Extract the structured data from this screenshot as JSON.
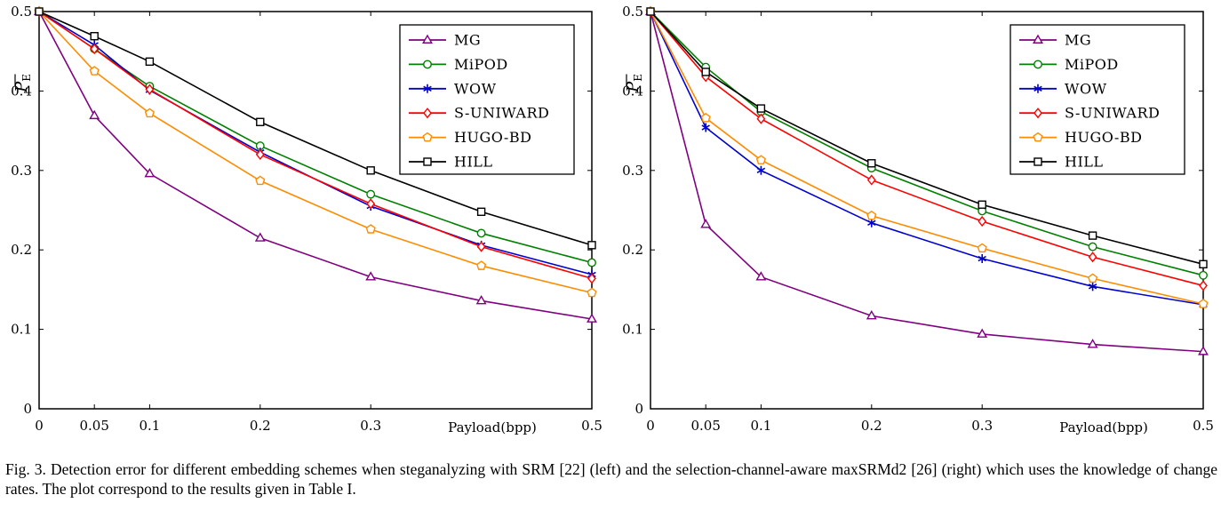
{
  "chart_data": [
    {
      "type": "line",
      "title": "",
      "xlabel": "Payload(bpp)",
      "ylabel": "P̅E",
      "x": [
        0,
        0.05,
        0.1,
        0.2,
        0.3,
        0.4,
        0.5
      ],
      "x_ticks": [
        0,
        0.05,
        0.1,
        0.2,
        0.3,
        0.5
      ],
      "y_ticks": [
        0,
        0.1,
        0.2,
        0.3,
        0.4,
        0.5
      ],
      "xlim": [
        0,
        0.5
      ],
      "ylim": [
        0,
        0.5
      ],
      "grid": false,
      "legend_position": "top-right",
      "series": [
        {
          "name": "MG",
          "values": [
            0.5,
            0.369,
            0.296,
            0.215,
            0.166,
            0.136,
            0.113
          ]
        },
        {
          "name": "MiPOD",
          "values": [
            0.5,
            0.453,
            0.406,
            0.331,
            0.27,
            0.221,
            0.184
          ]
        },
        {
          "name": "WOW",
          "values": [
            0.5,
            0.458,
            0.401,
            0.323,
            0.255,
            0.206,
            0.169
          ]
        },
        {
          "name": "S-UNIWARD",
          "values": [
            0.5,
            0.453,
            0.402,
            0.32,
            0.258,
            0.204,
            0.164
          ]
        },
        {
          "name": "HUGO-BD",
          "values": [
            0.5,
            0.425,
            0.372,
            0.287,
            0.226,
            0.18,
            0.146
          ]
        },
        {
          "name": "HILL",
          "values": [
            0.5,
            0.469,
            0.437,
            0.361,
            0.3,
            0.248,
            0.206
          ]
        }
      ]
    },
    {
      "type": "line",
      "title": "",
      "xlabel": "Payload(bpp)",
      "ylabel": "P̅E",
      "x": [
        0,
        0.05,
        0.1,
        0.2,
        0.3,
        0.4,
        0.5
      ],
      "x_ticks": [
        0,
        0.05,
        0.1,
        0.2,
        0.3,
        0.5
      ],
      "y_ticks": [
        0,
        0.1,
        0.2,
        0.3,
        0.4,
        0.5
      ],
      "xlim": [
        0,
        0.5
      ],
      "ylim": [
        0,
        0.5
      ],
      "grid": false,
      "legend_position": "top-right",
      "series": [
        {
          "name": "MG",
          "values": [
            0.5,
            0.232,
            0.166,
            0.117,
            0.094,
            0.081,
            0.072
          ]
        },
        {
          "name": "MiPOD",
          "values": [
            0.5,
            0.43,
            0.374,
            0.303,
            0.249,
            0.204,
            0.168
          ]
        },
        {
          "name": "WOW",
          "values": [
            0.5,
            0.354,
            0.3,
            0.234,
            0.189,
            0.154,
            0.131
          ]
        },
        {
          "name": "S-UNIWARD",
          "values": [
            0.5,
            0.418,
            0.365,
            0.288,
            0.236,
            0.191,
            0.155
          ]
        },
        {
          "name": "HUGO-BD",
          "values": [
            0.5,
            0.366,
            0.313,
            0.243,
            0.202,
            0.164,
            0.132
          ]
        },
        {
          "name": "HILL",
          "values": [
            0.5,
            0.424,
            0.378,
            0.309,
            0.257,
            0.218,
            0.182
          ]
        }
      ]
    }
  ],
  "series_styles": [
    {
      "color": "#800080",
      "marker": "triangle"
    },
    {
      "color": "#008000",
      "marker": "circle"
    },
    {
      "color": "#0000cc",
      "marker": "star"
    },
    {
      "color": "#ff0000",
      "marker": "diamond"
    },
    {
      "color": "#ff8c00",
      "marker": "pentagon"
    },
    {
      "color": "#000000",
      "marker": "square"
    }
  ],
  "caption": "Fig. 3.   Detection error for different embedding schemes when steganalyzing with SRM [22] (left) and the selection-channel-aware maxSRMd2 [26] (right) which uses the knowledge of change rates. The plot correspond to the results given in Table I."
}
